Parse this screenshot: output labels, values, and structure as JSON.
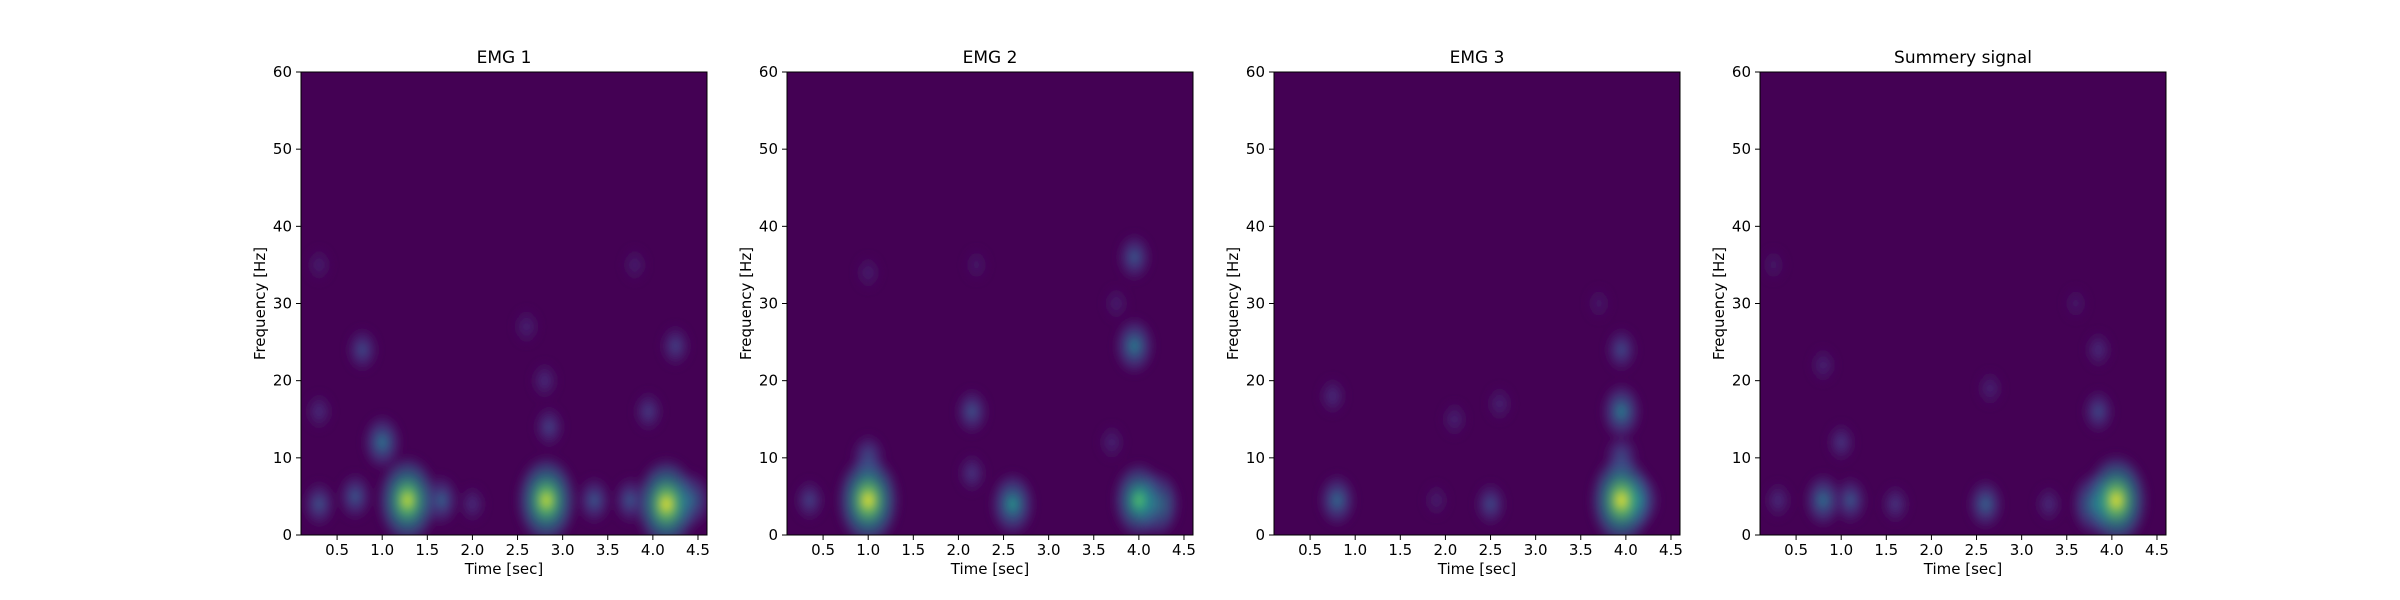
{
  "colors": {
    "colormap": "viridis",
    "background": "#440154"
  },
  "chart_data": [
    {
      "type": "heatmap",
      "title": "EMG 1",
      "xlabel": "Time [sec]",
      "ylabel": "Frequency [Hz]",
      "xlim": [
        0.1,
        4.6
      ],
      "ylim": [
        0,
        60
      ],
      "xticks": [
        0.5,
        1.0,
        1.5,
        2.0,
        2.5,
        3.0,
        3.5,
        4.0,
        4.5
      ],
      "xtick_labels": [
        "0.5",
        "1.0",
        "1.5",
        "2.0",
        "2.5",
        "3.0",
        "3.5",
        "4.0",
        "4.5"
      ],
      "yticks": [
        0,
        10,
        20,
        30,
        40,
        50,
        60
      ],
      "ytick_labels": [
        "0",
        "10",
        "20",
        "30",
        "40",
        "50",
        "60"
      ],
      "peaks": [
        {
          "t": 1.28,
          "f": 4.5,
          "intensity": 0.95
        },
        {
          "t": 2.82,
          "f": 4.5,
          "intensity": 0.95
        },
        {
          "t": 4.15,
          "f": 4.0,
          "intensity": 1.0
        },
        {
          "t": 1.0,
          "f": 12.0,
          "intensity": 0.42
        },
        {
          "t": 0.78,
          "f": 24.0,
          "intensity": 0.25
        },
        {
          "t": 0.3,
          "f": 4.0,
          "intensity": 0.28
        },
        {
          "t": 0.7,
          "f": 5.0,
          "intensity": 0.3
        },
        {
          "t": 1.65,
          "f": 4.5,
          "intensity": 0.35
        },
        {
          "t": 2.0,
          "f": 4.0,
          "intensity": 0.15
        },
        {
          "t": 3.35,
          "f": 4.5,
          "intensity": 0.3
        },
        {
          "t": 3.75,
          "f": 4.5,
          "intensity": 0.3
        },
        {
          "t": 4.42,
          "f": 4.5,
          "intensity": 0.45
        },
        {
          "t": 4.25,
          "f": 24.5,
          "intensity": 0.22
        },
        {
          "t": 3.95,
          "f": 16.0,
          "intensity": 0.2
        },
        {
          "t": 2.85,
          "f": 14.0,
          "intensity": 0.22
        },
        {
          "t": 2.8,
          "f": 20.0,
          "intensity": 0.15
        },
        {
          "t": 0.3,
          "f": 16.0,
          "intensity": 0.15
        },
        {
          "t": 0.3,
          "f": 35.0,
          "intensity": 0.1
        },
        {
          "t": 2.6,
          "f": 27.0,
          "intensity": 0.12
        },
        {
          "t": 3.8,
          "f": 35.0,
          "intensity": 0.1
        }
      ]
    },
    {
      "type": "heatmap",
      "title": "EMG 2",
      "xlabel": "Time [sec]",
      "ylabel": "Frequency [Hz]",
      "xlim": [
        0.1,
        4.6
      ],
      "ylim": [
        0,
        60
      ],
      "xticks": [
        0.5,
        1.0,
        1.5,
        2.0,
        2.5,
        3.0,
        3.5,
        4.0,
        4.5
      ],
      "xtick_labels": [
        "0.5",
        "1.0",
        "1.5",
        "2.0",
        "2.5",
        "3.0",
        "3.5",
        "4.0",
        "4.5"
      ],
      "yticks": [
        0,
        10,
        20,
        30,
        40,
        50,
        60
      ],
      "ytick_labels": [
        "0",
        "10",
        "20",
        "30",
        "40",
        "50",
        "60"
      ],
      "peaks": [
        {
          "t": 1.0,
          "f": 4.5,
          "intensity": 1.0
        },
        {
          "t": 2.6,
          "f": 4.0,
          "intensity": 0.55
        },
        {
          "t": 4.0,
          "f": 4.5,
          "intensity": 0.75
        },
        {
          "t": 4.2,
          "f": 4.0,
          "intensity": 0.6
        },
        {
          "t": 1.0,
          "f": 10.0,
          "intensity": 0.3
        },
        {
          "t": 3.95,
          "f": 24.5,
          "intensity": 0.45
        },
        {
          "t": 3.95,
          "f": 36.0,
          "intensity": 0.3
        },
        {
          "t": 2.15,
          "f": 16.0,
          "intensity": 0.28
        },
        {
          "t": 2.15,
          "f": 8.0,
          "intensity": 0.18
        },
        {
          "t": 0.35,
          "f": 4.5,
          "intensity": 0.22
        },
        {
          "t": 3.7,
          "f": 12.0,
          "intensity": 0.12
        },
        {
          "t": 1.0,
          "f": 34.0,
          "intensity": 0.1
        },
        {
          "t": 2.2,
          "f": 35.0,
          "intensity": 0.08
        },
        {
          "t": 3.75,
          "f": 30.0,
          "intensity": 0.1
        }
      ]
    },
    {
      "type": "heatmap",
      "title": "EMG 3",
      "xlabel": "Time [sec]",
      "ylabel": "Frequency [Hz]",
      "xlim": [
        0.1,
        4.6
      ],
      "ylim": [
        0,
        60
      ],
      "xticks": [
        0.5,
        1.0,
        1.5,
        2.0,
        2.5,
        3.0,
        3.5,
        4.0,
        4.5
      ],
      "xtick_labels": [
        "0.5",
        "1.0",
        "1.5",
        "2.0",
        "2.5",
        "3.0",
        "3.5",
        "4.0",
        "4.5"
      ],
      "yticks": [
        0,
        10,
        20,
        30,
        40,
        50,
        60
      ],
      "ytick_labels": [
        "0",
        "10",
        "20",
        "30",
        "40",
        "50",
        "60"
      ],
      "peaks": [
        {
          "t": 3.95,
          "f": 4.5,
          "intensity": 1.0
        },
        {
          "t": 3.95,
          "f": 16.0,
          "intensity": 0.45
        },
        {
          "t": 3.95,
          "f": 24.0,
          "intensity": 0.25
        },
        {
          "t": 3.95,
          "f": 10.0,
          "intensity": 0.3
        },
        {
          "t": 0.8,
          "f": 4.5,
          "intensity": 0.38
        },
        {
          "t": 0.75,
          "f": 18.0,
          "intensity": 0.15
        },
        {
          "t": 2.5,
          "f": 4.0,
          "intensity": 0.25
        },
        {
          "t": 2.1,
          "f": 15.0,
          "intensity": 0.12
        },
        {
          "t": 2.6,
          "f": 17.0,
          "intensity": 0.12
        },
        {
          "t": 1.9,
          "f": 4.5,
          "intensity": 0.1
        },
        {
          "t": 4.15,
          "f": 4.5,
          "intensity": 0.45
        },
        {
          "t": 3.7,
          "f": 30.0,
          "intensity": 0.08
        }
      ]
    },
    {
      "type": "heatmap",
      "title": "Summery signal",
      "xlabel": "Time [sec]",
      "ylabel": "Frequency [Hz]",
      "xlim": [
        0.1,
        4.6
      ],
      "ylim": [
        0,
        60
      ],
      "xticks": [
        0.5,
        1.0,
        1.5,
        2.0,
        2.5,
        3.0,
        3.5,
        4.0,
        4.5
      ],
      "xtick_labels": [
        "0.5",
        "1.0",
        "1.5",
        "2.0",
        "2.5",
        "3.0",
        "3.5",
        "4.0",
        "4.5"
      ],
      "yticks": [
        0,
        10,
        20,
        30,
        40,
        50,
        60
      ],
      "ytick_labels": [
        "0",
        "10",
        "20",
        "30",
        "40",
        "50",
        "60"
      ],
      "peaks": [
        {
          "t": 4.05,
          "f": 4.5,
          "intensity": 1.0
        },
        {
          "t": 3.8,
          "f": 4.0,
          "intensity": 0.55
        },
        {
          "t": 0.8,
          "f": 4.5,
          "intensity": 0.4
        },
        {
          "t": 1.1,
          "f": 4.5,
          "intensity": 0.3
        },
        {
          "t": 2.6,
          "f": 4.0,
          "intensity": 0.35
        },
        {
          "t": 1.6,
          "f": 4.0,
          "intensity": 0.18
        },
        {
          "t": 3.85,
          "f": 16.0,
          "intensity": 0.25
        },
        {
          "t": 3.85,
          "f": 24.0,
          "intensity": 0.15
        },
        {
          "t": 1.0,
          "f": 12.0,
          "intensity": 0.18
        },
        {
          "t": 0.8,
          "f": 22.0,
          "intensity": 0.12
        },
        {
          "t": 2.65,
          "f": 19.0,
          "intensity": 0.12
        },
        {
          "t": 0.3,
          "f": 4.5,
          "intensity": 0.15
        },
        {
          "t": 3.3,
          "f": 4.0,
          "intensity": 0.15
        },
        {
          "t": 0.25,
          "f": 35.0,
          "intensity": 0.08
        },
        {
          "t": 3.6,
          "f": 30.0,
          "intensity": 0.08
        }
      ]
    }
  ]
}
